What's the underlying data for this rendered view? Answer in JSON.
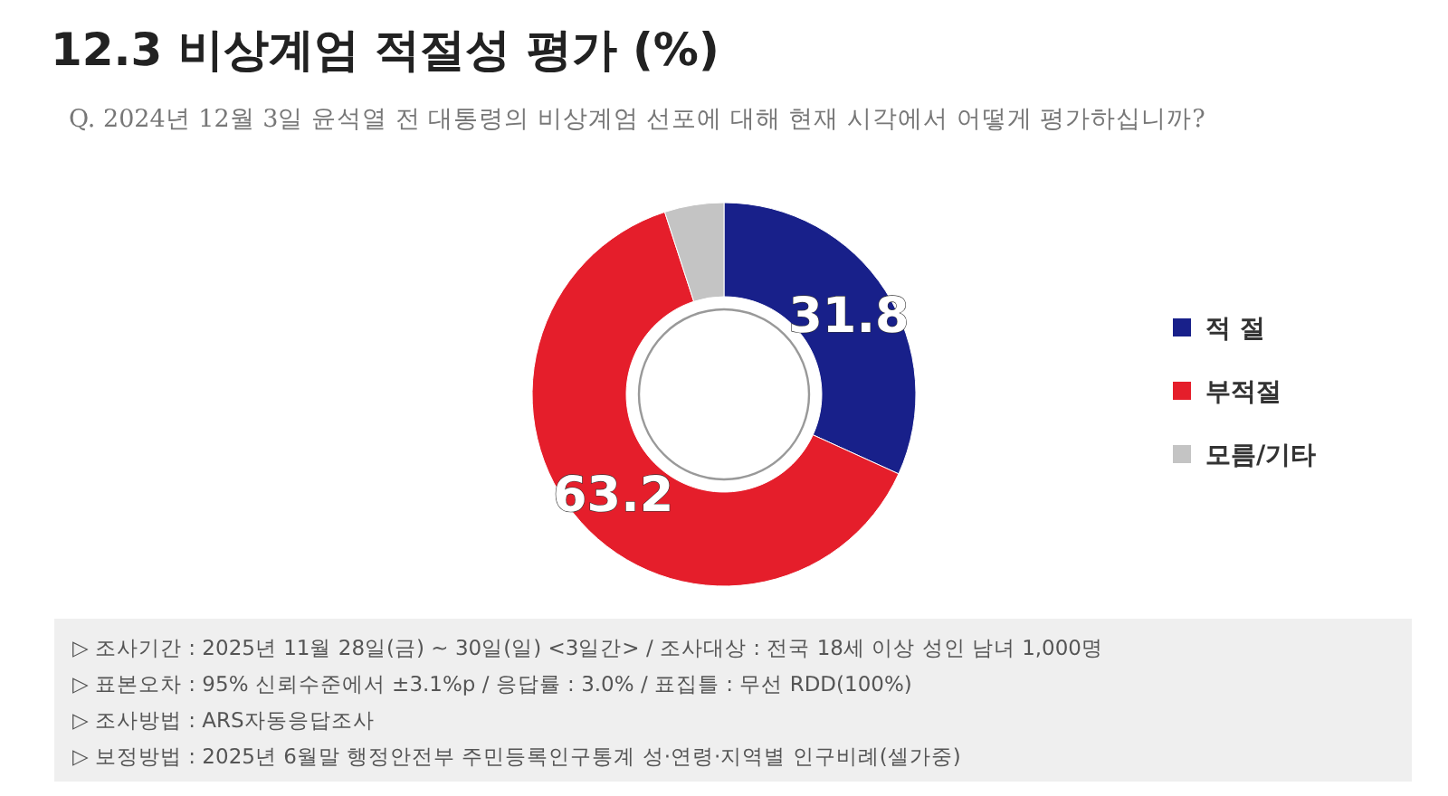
{
  "chart_data": {
    "type": "donut",
    "title": "12.3 비상계엄 적절성 평가 (%)",
    "subtitle": "Q. 2024년 12월 3일 윤석열 전 대통령의 비상계엄 선포에 대해 현재 시각에서 어떻게 평가하십니까?",
    "categories": [
      "적 절",
      "부적절",
      "모름/기타"
    ],
    "values": [
      31.8,
      63.2,
      5.0
    ],
    "colors": [
      "#18208a",
      "#e51e2b",
      "#c4c4c4"
    ],
    "value_labels": [
      "31.8",
      "63.2",
      null
    ],
    "legend": "right",
    "annotations": [
      "▷ 조사기간 : 2025년 11월 28일(금) ~ 30일(일) <3일간> / 조사대상 : 전국 18세 이상 성인 남녀 1,000명",
      "▷ 표본오차 : 95% 신뢰수준에서 ±3.1%p / 응답률 : 3.0% / 표집틀 : 무선 RDD(100%)",
      "▷ 조사방법 : ARS자동응답조사",
      "▷ 보정방법 : 2025년 6월말 행정안전부 주민등록인구통계 성·연령·지역별 인구비례(셀가중)"
    ]
  }
}
